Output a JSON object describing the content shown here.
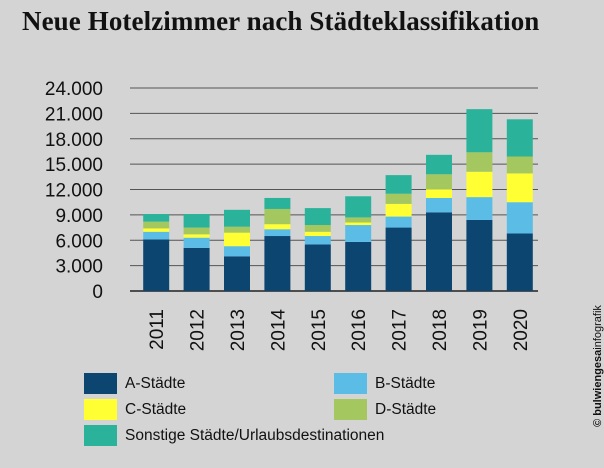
{
  "title": "Neue Hotelzimmer nach Städteklassifikation",
  "credit_bold": "© bulwiengesa",
  "credit_rest": "infografik",
  "colors": {
    "A-Städte": "#0c4670",
    "B-Städte": "#5bbde6",
    "C-Städte": "#ffff33",
    "D-Städte": "#a4c760",
    "Sonstige": "#2ab39a"
  },
  "chart_data": {
    "type": "bar",
    "stacked": true,
    "title": "Neue Hotelzimmer nach Städteklassifikation",
    "xlabel": "",
    "ylabel": "",
    "ylim": [
      0,
      24000
    ],
    "yticks": [
      "0",
      "3.000",
      "6.000",
      "9.000",
      "12.000",
      "15.000",
      "18.000",
      "21.000",
      "24.000"
    ],
    "grid": true,
    "legend_position": "bottom",
    "categories": [
      "2011",
      "2012",
      "2013",
      "2014",
      "2015",
      "2016",
      "2017",
      "2018",
      "2019",
      "2020"
    ],
    "series": [
      {
        "name": "A-Städte",
        "color": "#0c4670",
        "values": [
          6100,
          5100,
          4100,
          6500,
          5500,
          5800,
          7500,
          9300,
          8400,
          6800
        ]
      },
      {
        "name": "B-Städte",
        "color": "#5bbde6",
        "values": [
          900,
          1200,
          1200,
          800,
          1000,
          2000,
          1300,
          1700,
          2700,
          3700
        ]
      },
      {
        "name": "C-Städte",
        "color": "#ffff33",
        "values": [
          400,
          400,
          1600,
          600,
          500,
          300,
          1500,
          1000,
          3000,
          3400
        ]
      },
      {
        "name": "D-Städte",
        "color": "#a4c760",
        "values": [
          800,
          800,
          700,
          1800,
          800,
          600,
          1200,
          1800,
          2300,
          2000
        ]
      },
      {
        "name": "Sonstige Städte/Urlaubsdestinationen",
        "color": "#2ab39a",
        "values": [
          900,
          1600,
          2000,
          1300,
          2000,
          2500,
          2200,
          2300,
          5100,
          4400
        ]
      }
    ]
  }
}
